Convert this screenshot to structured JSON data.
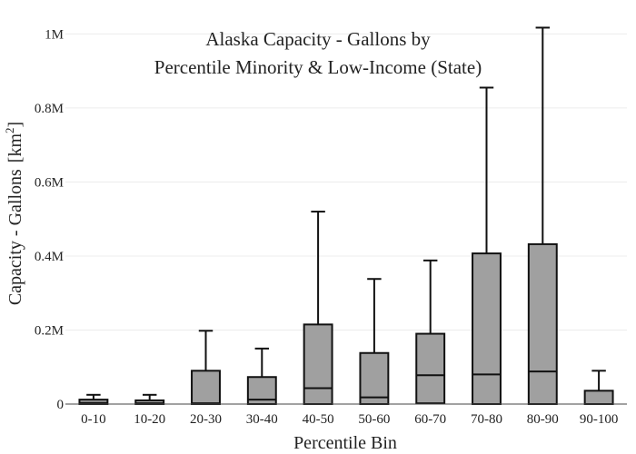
{
  "chart_data": {
    "type": "box",
    "title_lines": [
      "Alaska Capacity - Gallons by",
      "Percentile Minority & Low-Income (State)"
    ],
    "xlabel": "Percentile Bin",
    "ylabel_main": "Capacity - Gallons",
    "ylabel_unit_open": "[km",
    "ylabel_unit_sup": "2",
    "ylabel_unit_close": "]",
    "ylim": [
      0,
      1050000
    ],
    "yticks": [
      {
        "value": 0,
        "label": "0"
      },
      {
        "value": 200000,
        "label": "0.2M"
      },
      {
        "value": 400000,
        "label": "0.4M"
      },
      {
        "value": 600000,
        "label": "0.6M"
      },
      {
        "value": 800000,
        "label": "0.8M"
      },
      {
        "value": 1000000,
        "label": "1M"
      }
    ],
    "grid": true,
    "box_color": "#a0a0a0",
    "line_color": "#111111",
    "categories": [
      "0-10",
      "10-20",
      "20-30",
      "30-40",
      "40-50",
      "50-60",
      "60-70",
      "70-80",
      "80-90",
      "90-100"
    ],
    "boxes": [
      {
        "min": 0,
        "q1": 0,
        "median": 3000,
        "q3": 12000,
        "max": 25000
      },
      {
        "min": 0,
        "q1": 0,
        "median": 2000,
        "q3": 10000,
        "max": 25000
      },
      {
        "min": 0,
        "q1": 0,
        "median": 2000,
        "q3": 90000,
        "max": 198000
      },
      {
        "min": 0,
        "q1": 0,
        "median": 12000,
        "q3": 73000,
        "max": 150000
      },
      {
        "min": 0,
        "q1": 0,
        "median": 43000,
        "q3": 215000,
        "max": 520000
      },
      {
        "min": 0,
        "q1": 0,
        "median": 18000,
        "q3": 138000,
        "max": 338000
      },
      {
        "min": 0,
        "q1": 2000,
        "median": 78000,
        "q3": 190000,
        "max": 388000
      },
      {
        "min": 0,
        "q1": 0,
        "median": 80000,
        "q3": 407000,
        "max": 855000
      },
      {
        "min": 0,
        "q1": 0,
        "median": 88000,
        "q3": 432000,
        "max": 1017000
      },
      {
        "min": 0,
        "q1": 0,
        "median": 0,
        "q3": 36000,
        "max": 90000
      }
    ]
  }
}
